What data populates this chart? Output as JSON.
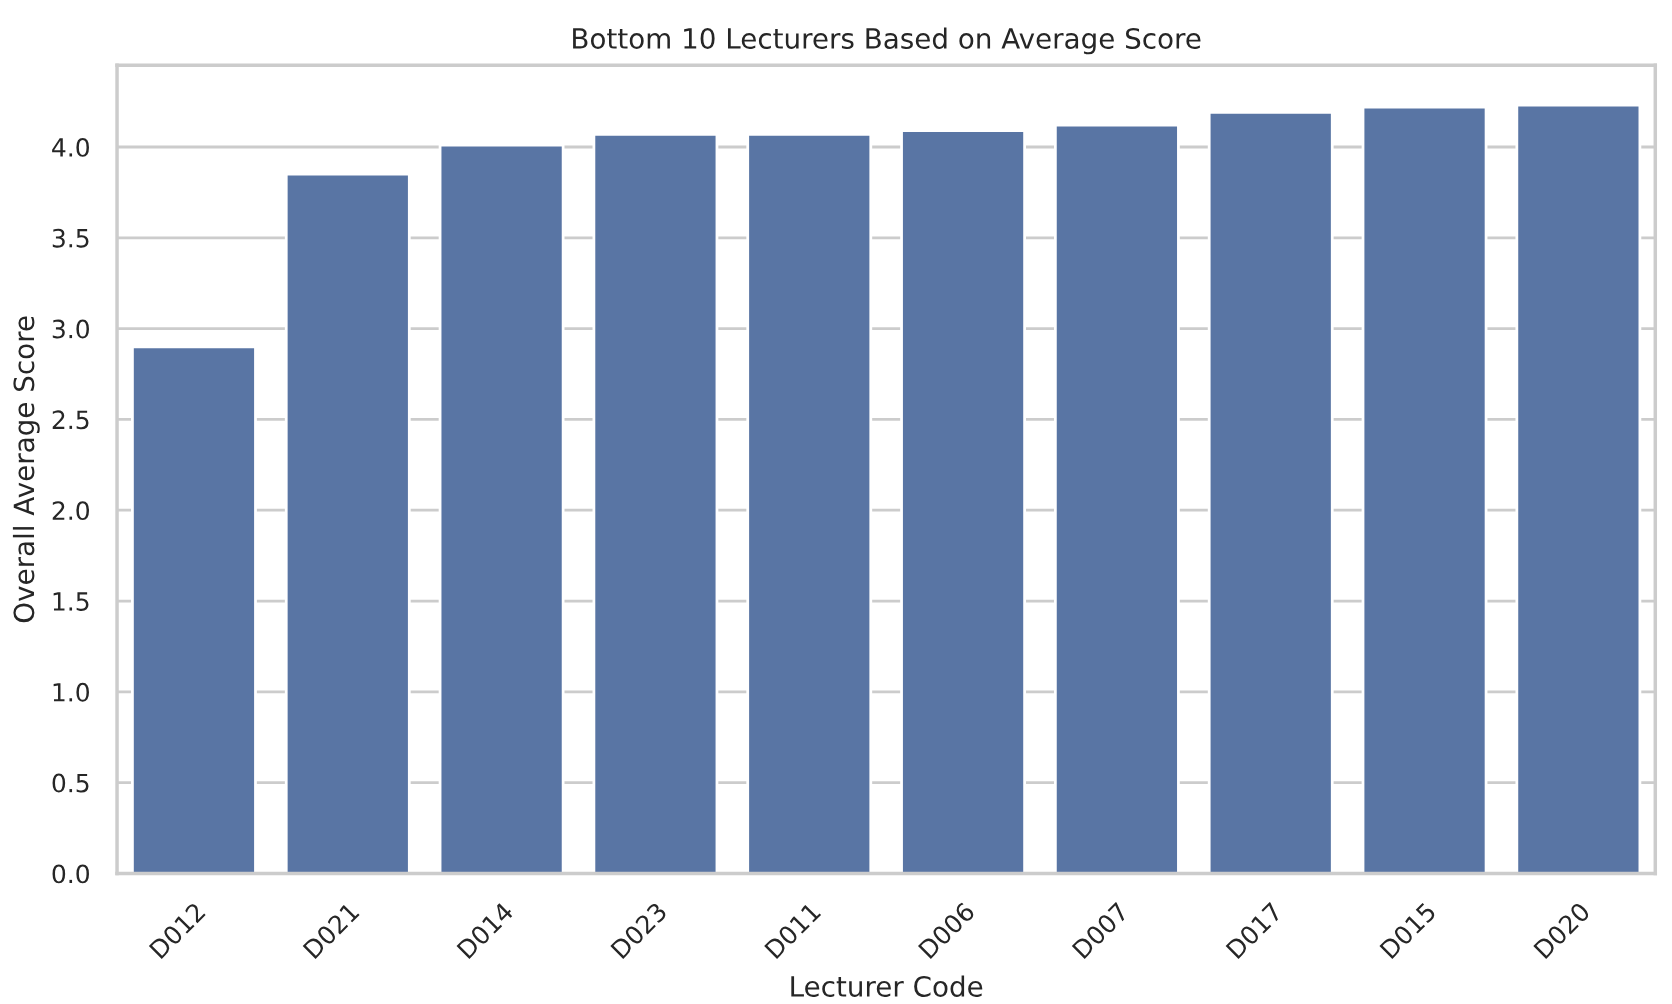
{
  "chart_data": {
    "type": "bar",
    "title": "Bottom 10 Lecturers Based on Average Score",
    "xlabel": "Lecturer Code",
    "ylabel": "Overall Average Score",
    "categories": [
      "D012",
      "D021",
      "D014",
      "D023",
      "D011",
      "D006",
      "D007",
      "D017",
      "D015",
      "D020"
    ],
    "values": [
      2.9,
      3.85,
      4.01,
      4.07,
      4.07,
      4.09,
      4.12,
      4.19,
      4.22,
      4.23
    ],
    "color": "#5975a4",
    "ylim": [
      0,
      4.45
    ],
    "yticks": [
      {
        "value": 0,
        "label": "0.0"
      },
      {
        "value": 0.5,
        "label": "0.5"
      },
      {
        "value": 1,
        "label": "1.0"
      },
      {
        "value": 1.5,
        "label": "1.5"
      },
      {
        "value": 2,
        "label": "2.0"
      },
      {
        "value": 2.5,
        "label": "2.5"
      },
      {
        "value": 3,
        "label": "3.0"
      },
      {
        "value": 3.5,
        "label": "3.5"
      },
      {
        "value": 4,
        "label": "4.0"
      }
    ],
    "grid": "y"
  }
}
